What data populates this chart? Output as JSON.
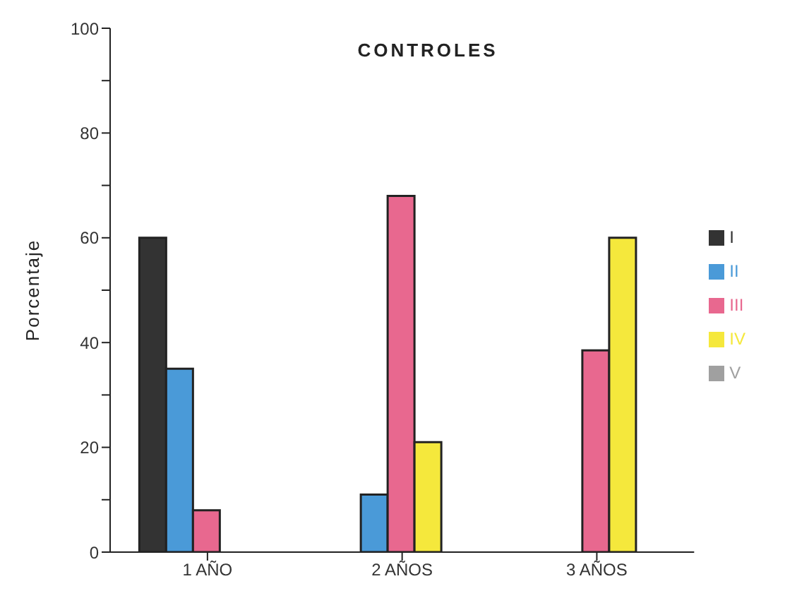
{
  "chart_data": {
    "type": "bar",
    "title": "CONTROLES",
    "ylabel": "Porcentaje",
    "categories": [
      "1 AÑO",
      "2 AÑOS",
      "3 AÑOS"
    ],
    "series": [
      {
        "name": "I",
        "color": "#333333",
        "values": [
          60,
          0,
          0
        ]
      },
      {
        "name": "II",
        "color": "#4a9ad8",
        "values": [
          35,
          11,
          0
        ]
      },
      {
        "name": "III",
        "color": "#e8688f",
        "values": [
          8,
          68,
          38.5
        ]
      },
      {
        "name": "IV",
        "color": "#f5e83c",
        "values": [
          0,
          21,
          60
        ]
      },
      {
        "name": "V",
        "color": "#a0a0a0",
        "values": [
          0,
          0,
          0
        ]
      }
    ],
    "ylim": [
      0,
      100
    ],
    "yticks": [
      0,
      {
        "value": 10,
        "label": null
      },
      20,
      {
        "value": 30,
        "label": null
      },
      40,
      {
        "value": 50,
        "label": null
      },
      60,
      {
        "value": 70,
        "label": null
      },
      80,
      {
        "value": 90,
        "label": null
      },
      100
    ],
    "grid": false,
    "legend": "right"
  }
}
